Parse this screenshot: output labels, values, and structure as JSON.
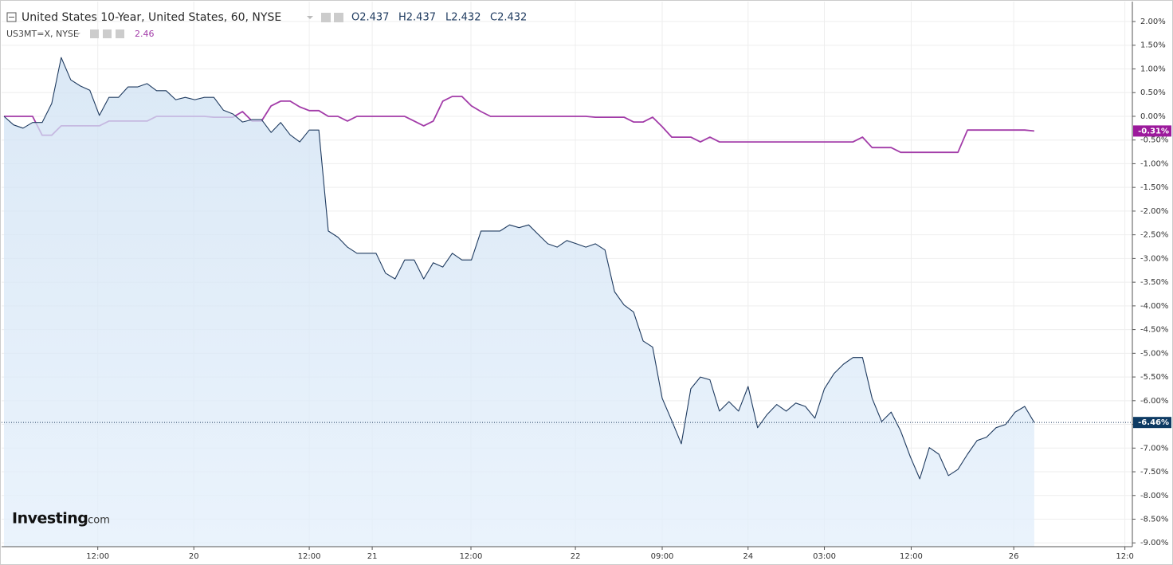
{
  "chart_data": {
    "type": "line",
    "header": {
      "ohlc": [
        "O2.437",
        "H2.437",
        "L2.432",
        "C2.432"
      ],
      "last": "2.46"
    },
    "watermark": [
      "Investing",
      ".com"
    ],
    "x": [
      0,
      1,
      2,
      3,
      4,
      5,
      6,
      7,
      8,
      9,
      10,
      11,
      12,
      13,
      14,
      15,
      16,
      17,
      18,
      19,
      20,
      21,
      22,
      23,
      24,
      25,
      26,
      27,
      28,
      29,
      30,
      31,
      32,
      33,
      34,
      35,
      36,
      37,
      38,
      39,
      40,
      41,
      42,
      43,
      44,
      45,
      46,
      47,
      48,
      49,
      50,
      51,
      52,
      53,
      54,
      55,
      56,
      57,
      58,
      59,
      60,
      61,
      62,
      63,
      64,
      65,
      66,
      67,
      68,
      69,
      70,
      71,
      72,
      73,
      74,
      75,
      76,
      77,
      78,
      79,
      80,
      81,
      82,
      83,
      84,
      85,
      86,
      87,
      88,
      89,
      90,
      91,
      92,
      93,
      94,
      95,
      96,
      97,
      98,
      99,
      100,
      101,
      102,
      103,
      104,
      105,
      106,
      107,
      108
    ],
    "series": [
      {
        "name": "United States 10-Year, United States, 60, NYSE",
        "color": "#1e3a5f",
        "fill": true,
        "last_label": "-6.46%",
        "values": [
          0,
          -0.18,
          -0.25,
          -0.13,
          -0.13,
          0.27,
          1.24,
          0.77,
          0.64,
          0.55,
          0.02,
          0.4,
          0.4,
          0.62,
          0.62,
          0.69,
          0.54,
          0.54,
          0.35,
          0.4,
          0.35,
          0.4,
          0.4,
          0.13,
          0.05,
          -0.12,
          -0.07,
          -0.07,
          -0.34,
          -0.13,
          -0.39,
          -0.54,
          -0.29,
          -0.29,
          -2.42,
          -2.55,
          -2.76,
          -2.89,
          -2.89,
          -2.89,
          -3.31,
          -3.43,
          -3.03,
          -3.03,
          -3.43,
          -3.09,
          -3.18,
          -2.89,
          -3.03,
          -3.03,
          -2.42,
          -2.42,
          -2.42,
          -2.29,
          -2.35,
          -2.29,
          -2.49,
          -2.69,
          -2.76,
          -2.62,
          -2.69,
          -2.76,
          -2.69,
          -2.82,
          -3.7,
          -3.98,
          -4.13,
          -4.74,
          -4.87,
          -5.95,
          -6.42,
          -6.91,
          -5.75,
          -5.5,
          -5.56,
          -6.22,
          -6.02,
          -6.22,
          -5.7,
          -6.57,
          -6.29,
          -6.08,
          -6.22,
          -6.05,
          -6.12,
          -6.37,
          -5.75,
          -5.43,
          -5.23,
          -5.09,
          -5.09,
          -5.95,
          -6.44,
          -6.24,
          -6.64,
          -7.18,
          -7.65,
          -6.99,
          -7.13,
          -7.58,
          -7.45,
          -7.13,
          -6.84,
          -6.77,
          -6.57,
          -6.5,
          -6.24,
          -6.12,
          -6.46
        ]
      },
      {
        "name": "US3MT=X, NYSE",
        "color": "#a23ba8",
        "fill": false,
        "last_label": "-0.31%",
        "values": [
          0,
          0,
          0,
          0,
          -0.4,
          -0.4,
          -0.2,
          -0.2,
          -0.2,
          -0.2,
          -0.2,
          -0.1,
          -0.1,
          -0.1,
          -0.1,
          -0.1,
          0,
          0,
          0,
          0,
          0,
          0,
          -0.02,
          -0.02,
          -0.02,
          0.1,
          -0.1,
          -0.1,
          0.22,
          0.32,
          0.32,
          0.2,
          0.12,
          0.12,
          0,
          0,
          -0.1,
          0,
          0,
          0,
          0,
          0,
          0,
          -0.1,
          -0.2,
          -0.1,
          0.32,
          0.42,
          0.42,
          0.22,
          0.1,
          0,
          0,
          0,
          0,
          0,
          0,
          0,
          0,
          0,
          0,
          0,
          -0.02,
          -0.02,
          -0.02,
          -0.02,
          -0.12,
          -0.12,
          -0.02,
          -0.22,
          -0.44,
          -0.44,
          -0.44,
          -0.54,
          -0.44,
          -0.54,
          -0.54,
          -0.54,
          -0.54,
          -0.54,
          -0.54,
          -0.54,
          -0.54,
          -0.54,
          -0.54,
          -0.54,
          -0.54,
          -0.54,
          -0.54,
          -0.54,
          -0.44,
          -0.66,
          -0.66,
          -0.66,
          -0.76,
          -0.76,
          -0.76,
          -0.76,
          -0.76,
          -0.76,
          -0.76,
          -0.29,
          -0.29,
          -0.29,
          -0.29,
          -0.29,
          -0.29,
          -0.29,
          -0.31
        ]
      }
    ],
    "xlim": [
      0,
      118.2
    ],
    "xticks": [
      {
        "value": 9.83,
        "label": "12:00"
      },
      {
        "value": 19.9,
        "label": "20"
      },
      {
        "value": 32.0,
        "label": "12:00"
      },
      {
        "value": 38.6,
        "label": "21"
      },
      {
        "value": 48.95,
        "label": "12:00"
      },
      {
        "value": 59.9,
        "label": "22"
      },
      {
        "value": 69.0,
        "label": "09:00"
      },
      {
        "value": 78.0,
        "label": "24"
      },
      {
        "value": 86.0,
        "label": "03:00"
      },
      {
        "value": 95.1,
        "label": "12:00"
      },
      {
        "value": 105.85,
        "label": "26"
      },
      {
        "value": 117.5,
        "label": "12:0"
      }
    ],
    "ylim": [
      -9.08,
      2.37
    ],
    "yticks": [
      {
        "value": 2,
        "label": "2.00%"
      },
      {
        "value": 1.5,
        "label": "1.50%"
      },
      {
        "value": 1,
        "label": "1.00%"
      },
      {
        "value": 0.5,
        "label": "0.50%"
      },
      {
        "value": 0,
        "label": "0.00%"
      },
      {
        "value": -0.5,
        "label": "-0.50%"
      },
      {
        "value": -1,
        "label": "-1.00%"
      },
      {
        "value": -1.5,
        "label": "-1.50%"
      },
      {
        "value": -2,
        "label": "-2.00%"
      },
      {
        "value": -2.5,
        "label": "-2.50%"
      },
      {
        "value": -3,
        "label": "-3.00%"
      },
      {
        "value": -3.5,
        "label": "-3.50%"
      },
      {
        "value": -4,
        "label": "-4.00%"
      },
      {
        "value": -4.5,
        "label": "-4.50%"
      },
      {
        "value": -5,
        "label": "-5.00%"
      },
      {
        "value": -5.5,
        "label": "-5.50%"
      },
      {
        "value": -6,
        "label": "-6.00%"
      },
      {
        "value": -6.5,
        "label": "-6.50%"
      },
      {
        "value": -7,
        "label": "-7.00%"
      },
      {
        "value": -7.5,
        "label": "-7.50%"
      },
      {
        "value": -8,
        "label": "-8.00%"
      },
      {
        "value": -8.5,
        "label": "-8.50%"
      },
      {
        "value": -9,
        "label": "-9.00%"
      }
    ],
    "grid": true
  }
}
